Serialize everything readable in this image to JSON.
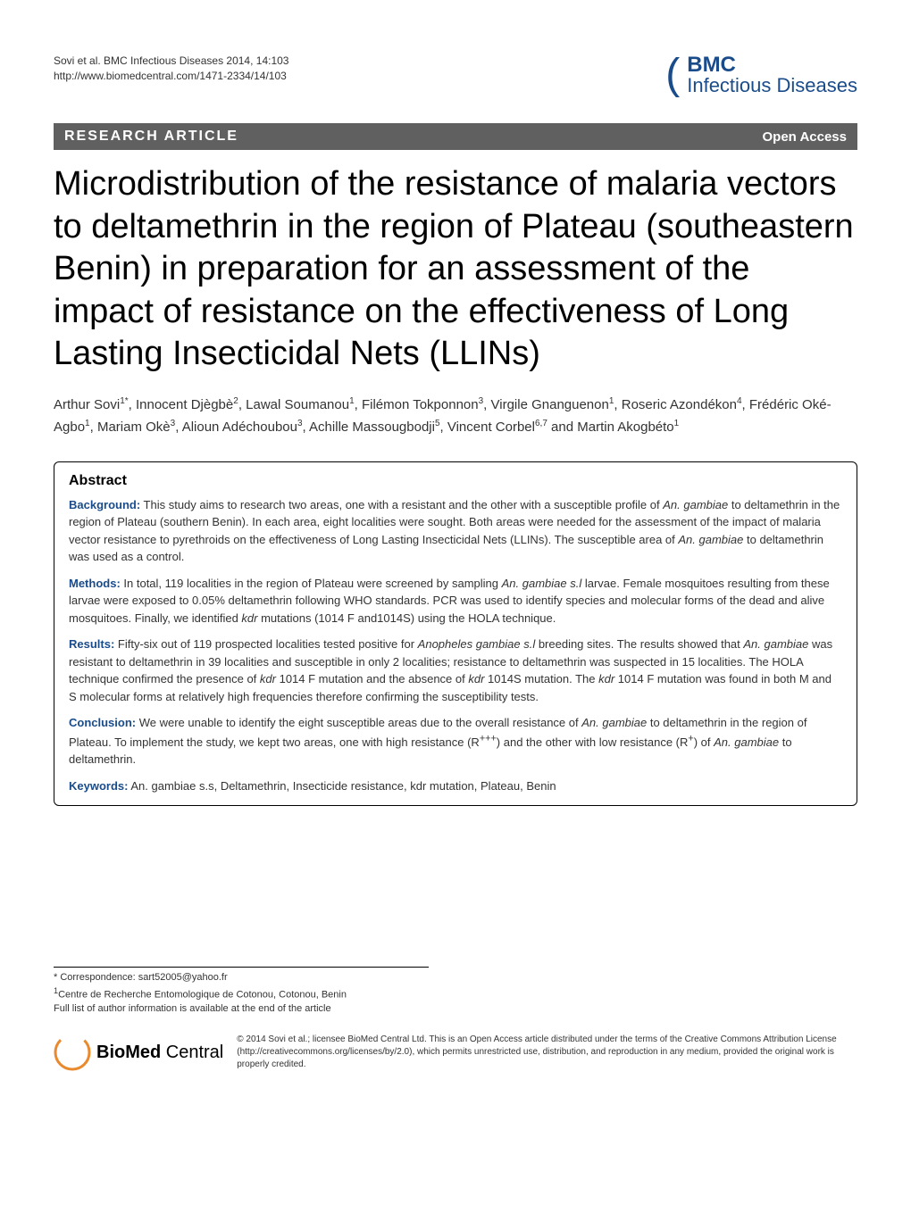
{
  "header": {
    "citation_line1": "Sovi et al. BMC Infectious Diseases 2014, 14:103",
    "citation_line2": "http://www.biomedcentral.com/1471-2334/14/103",
    "logo_bmc": "BMC",
    "logo_journal": "Infectious Diseases"
  },
  "article_bar": {
    "type": "RESEARCH ARTICLE",
    "access": "Open Access"
  },
  "title": "Microdistribution of the resistance of malaria vectors to deltamethrin in the region of Plateau (southeastern Benin) in preparation for an assessment of the impact of resistance on the effectiveness of Long Lasting Insecticidal Nets (LLINs)",
  "authors_html": "Arthur Sovi<sup>1*</sup>, Innocent Djègbè<sup>2</sup>, Lawal Soumanou<sup>1</sup>, Filémon Tokponnon<sup>3</sup>, Virgile Gnanguenon<sup>1</sup>, Roseric Azondékon<sup>4</sup>, Frédéric Oké-Agbo<sup>1</sup>, Mariam Okè<sup>3</sup>, Alioun Adéchoubou<sup>3</sup>, Achille Massougbodji<sup>5</sup>, Vincent Corbel<sup>6,7</sup> and Martin Akogbéto<sup>1</sup>",
  "abstract": {
    "heading": "Abstract",
    "background_label": "Background:",
    "background_text": " This study aims to research two areas, one with a resistant and the other with a susceptible profile of <span class=\"italic\">An. gambiae</span> to deltamethrin in the region of Plateau (southern Benin). In each area, eight localities were sought. Both areas were needed for the assessment of the impact of malaria vector resistance to pyrethroids on the effectiveness of Long Lasting Insecticidal Nets (LLINs). The susceptible area of <span class=\"italic\">An. gambiae</span> to deltamethrin was used as a control.",
    "methods_label": "Methods:",
    "methods_text": " In total, 119 localities in the region of Plateau were screened by sampling <span class=\"italic\">An. gambiae s.l</span> larvae. Female mosquitoes resulting from these larvae were exposed to 0.05% deltamethrin following WHO standards. PCR was used to identify species and molecular forms of the dead and alive mosquitoes. Finally, we identified <span class=\"italic\">kdr</span> mutations (1014 F and1014S) using the HOLA technique.",
    "results_label": "Results:",
    "results_text": " Fifty-six out of 119 prospected localities tested positive for <span class=\"italic\">Anopheles gambiae s.l</span> breeding sites. The results showed that <span class=\"italic\">An. gambiae</span> was resistant to deltamethrin in 39 localities and susceptible in only 2 localities; resistance to deltamethrin was suspected in 15 localities. The HOLA technique confirmed the presence of <span class=\"italic\">kdr</span> 1014 F mutation and the absence of <span class=\"italic\">kdr</span> 1014S mutation. The <span class=\"italic\">kdr</span> 1014 F mutation was found in both M and S molecular forms at relatively high frequencies therefore confirming the susceptibility tests.",
    "conclusion_label": "Conclusion:",
    "conclusion_text": " We were unable to identify the eight susceptible areas due to the overall resistance of <span class=\"italic\">An. gambiae</span> to deltamethrin in the region of Plateau. To implement the study, we kept two areas, one with high resistance (R<sup>+++</sup>) and the other with low resistance (R<sup>+</sup>) of <span class=\"italic\">An. gambiae</span> to deltamethrin.",
    "keywords_label": "Keywords:",
    "keywords_text": " <span class=\"italic\">An. gambiae s.s</span>, Deltamethrin, Insecticide resistance, <span class=\"italic\">kdr</span> mutation, Plateau, Benin"
  },
  "footer": {
    "correspondence": "* Correspondence: sart52005@yahoo.fr",
    "affiliation": "1Centre de Recherche Entomologique de Cotonou, Cotonou, Benin",
    "author_note": "Full list of author information is available at the end of the article",
    "biomed_text1": "BioMed",
    "biomed_text2": " Central",
    "license": "© 2014 Sovi et al.; licensee BioMed Central Ltd. This is an Open Access article distributed under the terms of the Creative Commons Attribution License (http://creativecommons.org/licenses/by/2.0), which permits unrestricted use, distribution, and reproduction in any medium, provided the original work is properly credited."
  },
  "colors": {
    "bar_bg": "#606060",
    "brand_blue": "#1a4c8b",
    "text_dark": "#333333",
    "biomed_orange": "#e98a2e"
  }
}
